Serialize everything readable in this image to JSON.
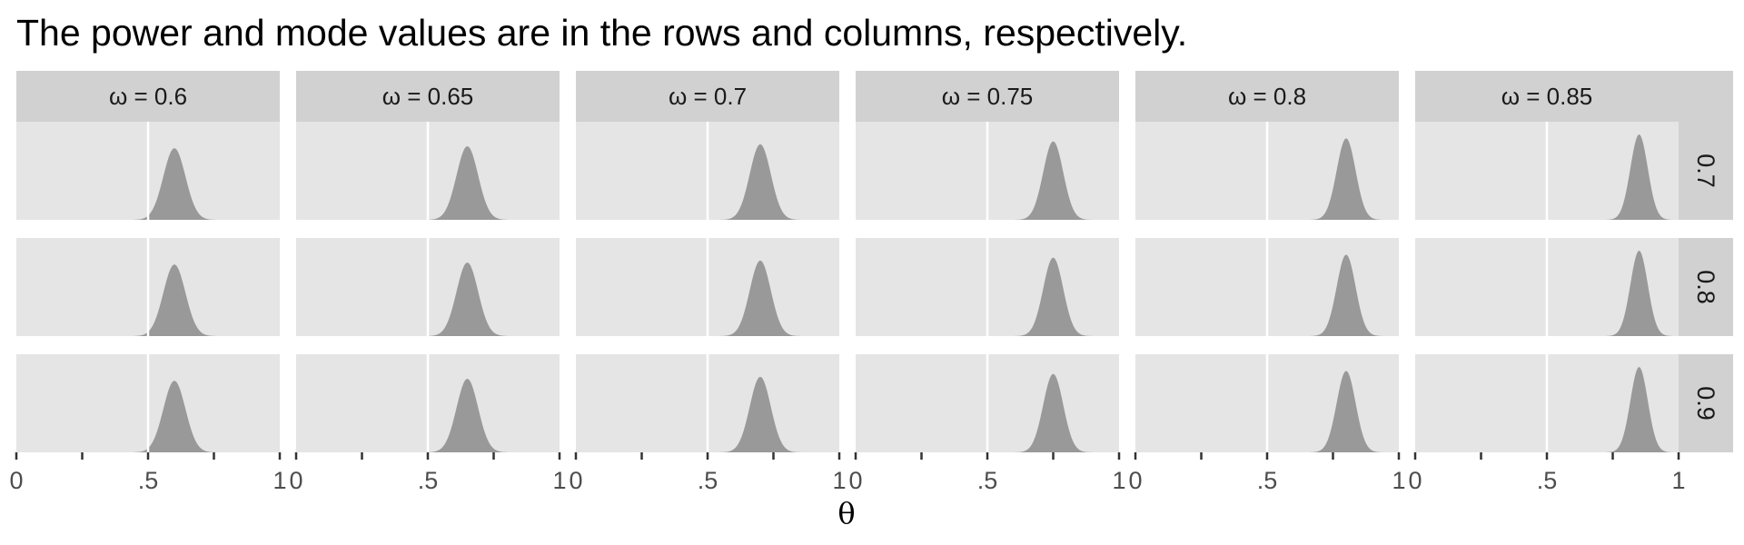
{
  "title": "The power and mode values are in the rows and columns, respectively.",
  "chart_data": {
    "type": "area",
    "title": "The power and mode values are in the rows and columns, respectively.",
    "xlabel": "θ",
    "ylabel": "",
    "xlim": [
      0,
      1
    ],
    "x_ticks": [
      0,
      0.25,
      0.5,
      0.75,
      1
    ],
    "x_tick_labels": [
      "0",
      "",
      ".5",
      "",
      "1"
    ],
    "reference_line_x": 0.5,
    "column_strip_labels": [
      "ω = 0.6",
      "ω = 0.65",
      "ω = 0.7",
      "ω = 0.75",
      "ω = 0.8",
      "ω = 0.85"
    ],
    "row_strip_labels": [
      "0.7",
      "0.8",
      "0.9"
    ],
    "column_modes": [
      0.6,
      0.65,
      0.7,
      0.75,
      0.8,
      0.85
    ],
    "row_powers": [
      0.7,
      0.8,
      0.9
    ],
    "series": [
      {
        "row": "0.7",
        "column": "ω = 0.6",
        "mode": 0.6,
        "sd": 0.042,
        "relative_peak": 0.73
      },
      {
        "row": "0.7",
        "column": "ω = 0.65",
        "mode": 0.65,
        "sd": 0.041,
        "relative_peak": 0.75
      },
      {
        "row": "0.7",
        "column": "ω = 0.7",
        "mode": 0.7,
        "sd": 0.04,
        "relative_peak": 0.77
      },
      {
        "row": "0.7",
        "column": "ω = 0.75",
        "mode": 0.75,
        "sd": 0.038,
        "relative_peak": 0.8
      },
      {
        "row": "0.7",
        "column": "ω = 0.8",
        "mode": 0.8,
        "sd": 0.036,
        "relative_peak": 0.83
      },
      {
        "row": "0.7",
        "column": "ω = 0.85",
        "mode": 0.85,
        "sd": 0.033,
        "relative_peak": 0.87
      },
      {
        "row": "0.8",
        "column": "ω = 0.6",
        "mode": 0.6,
        "sd": 0.042,
        "relative_peak": 0.73
      },
      {
        "row": "0.8",
        "column": "ω = 0.65",
        "mode": 0.65,
        "sd": 0.041,
        "relative_peak": 0.75
      },
      {
        "row": "0.8",
        "column": "ω = 0.7",
        "mode": 0.7,
        "sd": 0.04,
        "relative_peak": 0.77
      },
      {
        "row": "0.8",
        "column": "ω = 0.75",
        "mode": 0.75,
        "sd": 0.038,
        "relative_peak": 0.8
      },
      {
        "row": "0.8",
        "column": "ω = 0.8",
        "mode": 0.8,
        "sd": 0.036,
        "relative_peak": 0.83
      },
      {
        "row": "0.8",
        "column": "ω = 0.85",
        "mode": 0.85,
        "sd": 0.033,
        "relative_peak": 0.87
      },
      {
        "row": "0.9",
        "column": "ω = 0.6",
        "mode": 0.6,
        "sd": 0.042,
        "relative_peak": 0.73
      },
      {
        "row": "0.9",
        "column": "ω = 0.65",
        "mode": 0.65,
        "sd": 0.041,
        "relative_peak": 0.75
      },
      {
        "row": "0.9",
        "column": "ω = 0.7",
        "mode": 0.7,
        "sd": 0.04,
        "relative_peak": 0.77
      },
      {
        "row": "0.9",
        "column": "ω = 0.75",
        "mode": 0.75,
        "sd": 0.038,
        "relative_peak": 0.8
      },
      {
        "row": "0.9",
        "column": "ω = 0.8",
        "mode": 0.8,
        "sd": 0.036,
        "relative_peak": 0.83
      },
      {
        "row": "0.9",
        "column": "ω = 0.85",
        "mode": 0.85,
        "sd": 0.033,
        "relative_peak": 0.87
      }
    ],
    "grid": false,
    "legend": "none",
    "colors": {
      "panel_background": "#e5e5e5",
      "strip_background": "#d1d1d1",
      "density_fill": "#999999",
      "reference_line": "#ffffff",
      "tick": "#333333",
      "text": "#000000",
      "tick_text": "#4d4d4d"
    }
  }
}
